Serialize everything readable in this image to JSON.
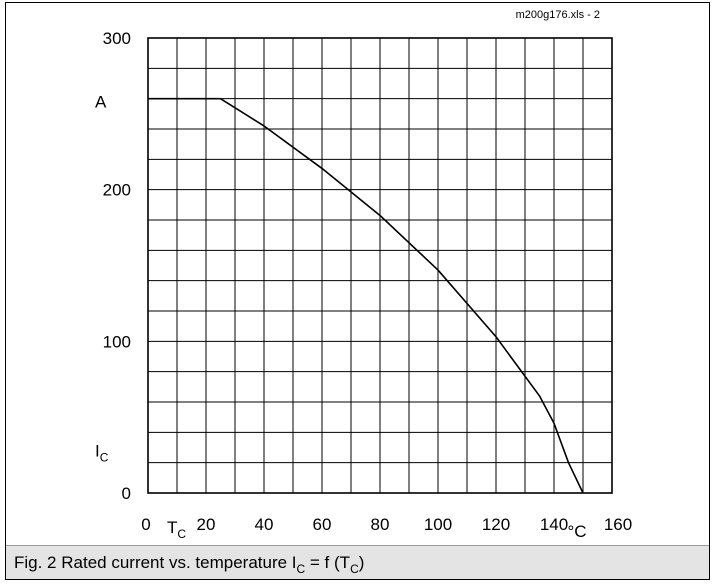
{
  "file_tag": "m200g176.xls - 2",
  "caption": {
    "prefix": "Fig. 2 Rated current vs. temperature I",
    "sub1": "C",
    "middle": " = f (T",
    "sub2": "C",
    "suffix": ")"
  },
  "chart_data": {
    "type": "line",
    "title": "",
    "xlabel": "T",
    "xlabel_sub": "C",
    "xunit": "°C",
    "ylabel": "I",
    "ylabel_sub": "C",
    "yunit": "A",
    "xlim": [
      0,
      160
    ],
    "ylim": [
      0,
      300
    ],
    "x_ticks": [
      0,
      20,
      40,
      60,
      80,
      100,
      120,
      140,
      160
    ],
    "y_ticks": [
      0,
      100,
      200,
      300
    ],
    "x_grid_step": 10,
    "y_grid_step": 20,
    "grid": true,
    "series": [
      {
        "x": [
          0,
          25,
          40,
          60,
          80,
          100,
          120,
          135,
          140,
          145,
          150
        ],
        "y": [
          260,
          260,
          242,
          214,
          183,
          147,
          103,
          64,
          46,
          20,
          0
        ]
      }
    ]
  }
}
